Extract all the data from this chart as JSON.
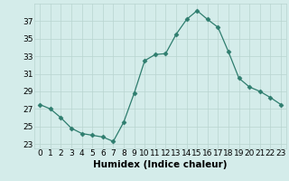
{
  "x": [
    0,
    1,
    2,
    3,
    4,
    5,
    6,
    7,
    8,
    9,
    10,
    11,
    12,
    13,
    14,
    15,
    16,
    17,
    18,
    19,
    20,
    21,
    22,
    23
  ],
  "y": [
    27.5,
    27.0,
    26.0,
    24.8,
    24.2,
    24.0,
    23.8,
    23.3,
    25.5,
    28.8,
    32.5,
    33.2,
    33.3,
    35.5,
    37.2,
    38.2,
    37.2,
    36.3,
    33.5,
    30.5,
    29.5,
    29.0,
    28.3,
    27.5
  ],
  "line_color": "#2e7d6e",
  "marker": "D",
  "marker_size": 2.5,
  "bg_color": "#d4ecea",
  "grid_color": "#b8d4d0",
  "xlabel": "Humidex (Indice chaleur)",
  "xlim": [
    -0.5,
    23.5
  ],
  "ylim": [
    22.5,
    39.0
  ],
  "yticks": [
    23,
    25,
    27,
    29,
    31,
    33,
    35,
    37
  ],
  "xticks": [
    0,
    1,
    2,
    3,
    4,
    5,
    6,
    7,
    8,
    9,
    10,
    11,
    12,
    13,
    14,
    15,
    16,
    17,
    18,
    19,
    20,
    21,
    22,
    23
  ],
  "xlabel_fontsize": 7.5,
  "tick_fontsize": 6.5
}
